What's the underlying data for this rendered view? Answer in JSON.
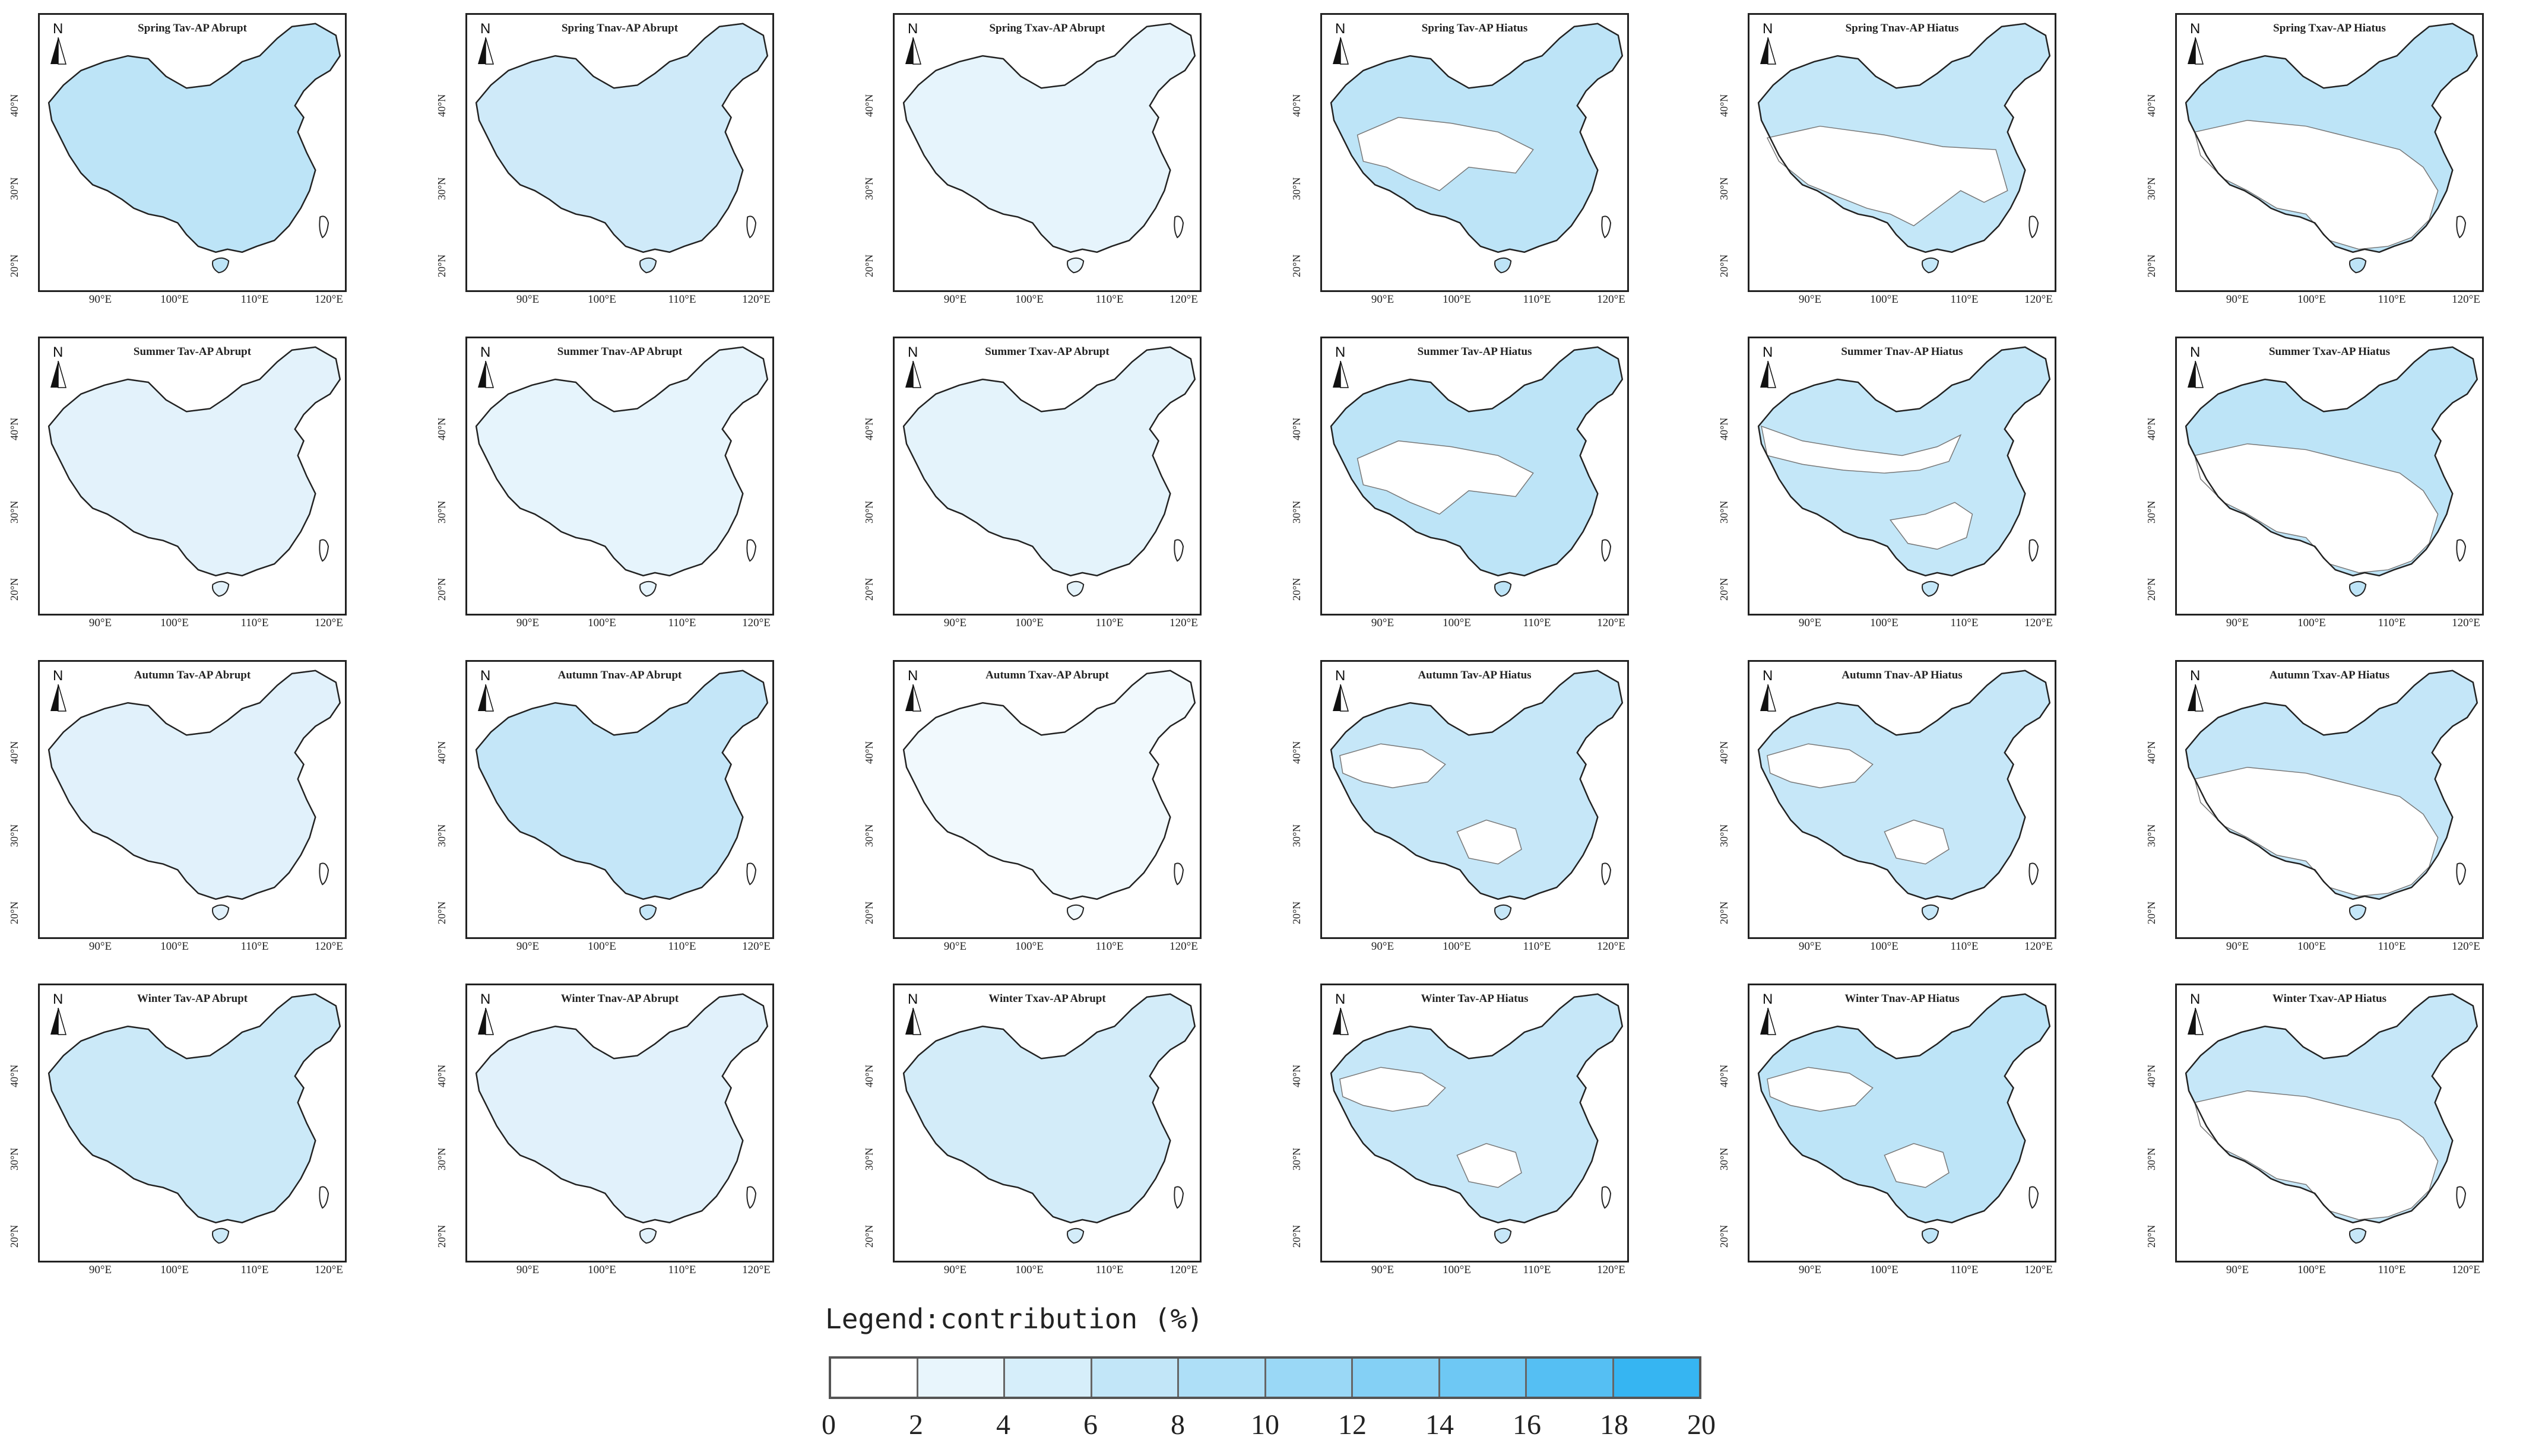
{
  "panels": [
    {
      "title": "Spring Tav-AP Abrupt",
      "fill": "#bde4f7",
      "mode": "full"
    },
    {
      "title": "Spring Tnav-AP Abrupt",
      "fill": "#cfeaf9",
      "mode": "full"
    },
    {
      "title": "Spring Txav-AP Abrupt",
      "fill": "#e6f4fc",
      "mode": "full"
    },
    {
      "title": "Spring Tav-AP Hiatus",
      "fill": "#bde4f7",
      "mode": "partial-upper-lower"
    },
    {
      "title": "Spring Tnav-AP Hiatus",
      "fill": "#c4e7f8",
      "mode": "partial-upper-bits"
    },
    {
      "title": "Spring Txav-AP Hiatus",
      "fill": "#bde4f7",
      "mode": "partial-upper-east"
    },
    {
      "title": "Summer Tav-AP Abrupt",
      "fill": "#e3f2fb",
      "mode": "full"
    },
    {
      "title": "Summer Tnav-AP Abrupt",
      "fill": "#e6f4fc",
      "mode": "full"
    },
    {
      "title": "Summer Txav-AP Abrupt",
      "fill": "#e4f3fb",
      "mode": "full"
    },
    {
      "title": "Summer Tav-AP Hiatus",
      "fill": "#bde4f7",
      "mode": "partial-upper-lower"
    },
    {
      "title": "Summer Tnav-AP Hiatus",
      "fill": "#c4e7f8",
      "mode": "partial-band"
    },
    {
      "title": "Summer Txav-AP Hiatus",
      "fill": "#bde4f7",
      "mode": "partial-upper-east"
    },
    {
      "title": "Autumn Tav-AP Abrupt",
      "fill": "#e1f1fb",
      "mode": "full"
    },
    {
      "title": "Autumn Tnav-AP Abrupt",
      "fill": "#c4e6f8",
      "mode": "full"
    },
    {
      "title": "Autumn Txav-AP Abrupt",
      "fill": "#f1f9fd",
      "mode": "full"
    },
    {
      "title": "Autumn Tav-AP Hiatus",
      "fill": "#c6e7f8",
      "mode": "partial-mostly"
    },
    {
      "title": "Autumn Tnav-AP Hiatus",
      "fill": "#c6e7f8",
      "mode": "partial-mostly"
    },
    {
      "title": "Autumn Txav-AP Hiatus",
      "fill": "#c4e6f8",
      "mode": "partial-upper-east"
    },
    {
      "title": "Winter Tav-AP Abrupt",
      "fill": "#cbe9f8",
      "mode": "full"
    },
    {
      "title": "Winter Tnav-AP Abrupt",
      "fill": "#e1f1fb",
      "mode": "full"
    },
    {
      "title": "Winter Txav-AP Abrupt",
      "fill": "#d3ecf9",
      "mode": "full"
    },
    {
      "title": "Winter Tav-AP Hiatus",
      "fill": "#c6e7f8",
      "mode": "partial-mostly"
    },
    {
      "title": "Winter Tnav-AP Hiatus",
      "fill": "#bde4f7",
      "mode": "partial-mostly"
    },
    {
      "title": "Winter Txav-AP Hiatus",
      "fill": "#c6e7f8",
      "mode": "partial-upper-east"
    }
  ],
  "north_label": "N",
  "y_ticks": [
    "40°N",
    "30°N",
    "20°N"
  ],
  "x_ticks": [
    "90°E",
    "100°E",
    "110°E",
    "120°E"
  ],
  "legend": {
    "title": "Legend:contribution (%)",
    "labels": [
      "0",
      "2",
      "4",
      "6",
      "8",
      "10",
      "12",
      "14",
      "16",
      "18",
      "20"
    ],
    "colors": [
      "#ffffff",
      "#e8f5fc",
      "#d6eefa",
      "#c2e6f8",
      "#aedff7",
      "#9ad8f6",
      "#84d0f5",
      "#6ec8f4",
      "#55bff3",
      "#36b5f2"
    ]
  }
}
